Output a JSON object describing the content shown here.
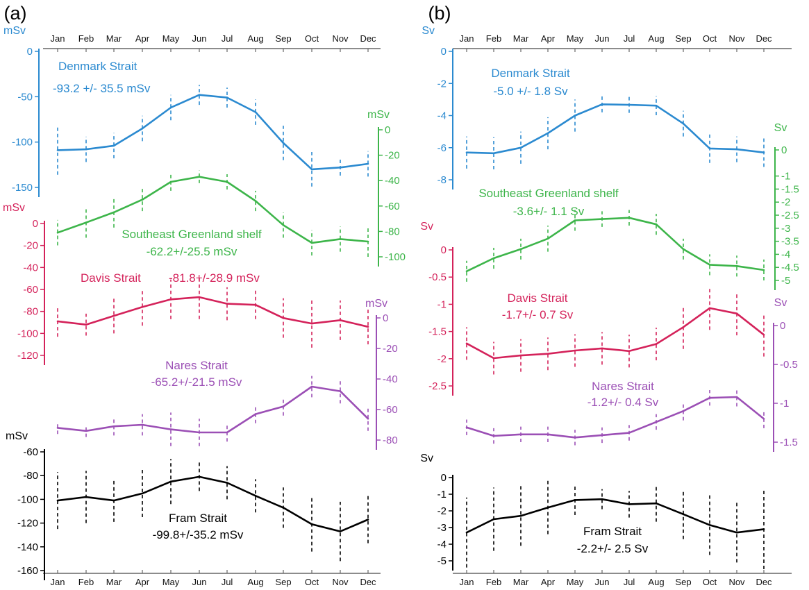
{
  "months": [
    "Jan",
    "Feb",
    "Mar",
    "Apr",
    "May",
    "Jun",
    "Jul",
    "Aug",
    "Sep",
    "Oct",
    "Nov",
    "Dec"
  ],
  "chart_data": [
    {
      "panel": "(a)",
      "type": "line",
      "x": [
        "Jan",
        "Feb",
        "Mar",
        "Apr",
        "May",
        "Jun",
        "Jul",
        "Aug",
        "Sep",
        "Oct",
        "Nov",
        "Dec"
      ],
      "series": [
        {
          "name": "Denmark Strait",
          "stat": "-93.2 +/- 35.5 mSv",
          "unit": "mSv",
          "color": "#2b8ad0",
          "axis_ticks": [
            "0",
            "-50",
            "-100",
            "-150"
          ],
          "ylim": [
            0,
            -150
          ],
          "values": [
            -109,
            -108,
            -104,
            -85,
            -62,
            -48,
            -51,
            -67,
            -101,
            -130,
            -128,
            -124
          ],
          "error": [
            27,
            14,
            14,
            14,
            14,
            11,
            11,
            14,
            19,
            19,
            9,
            14
          ]
        },
        {
          "name": "Southeast Greenland shelf",
          "stat": "-62.2+/-25.5 mSv",
          "unit": "mSv",
          "color": "#3db54a",
          "axis_ticks": [
            "0",
            "-20",
            "-40",
            "-60",
            "-80",
            "-100"
          ],
          "ylim": [
            0,
            -100
          ],
          "values": [
            -81,
            -73,
            -65,
            -55,
            -41,
            -37,
            -41,
            -56,
            -75,
            -89,
            -86,
            -88
          ],
          "error": [
            10,
            12,
            12,
            9,
            7,
            5,
            6,
            8,
            10,
            10,
            10,
            12
          ]
        },
        {
          "name": "Davis Strait",
          "stat": "-81.8+/-28.9 mSv",
          "unit": "mSv",
          "color": "#d4225a",
          "axis_ticks": [
            "0",
            "-20",
            "-40",
            "-60",
            "-80",
            "-100",
            "-120"
          ],
          "ylim": [
            0,
            -120
          ],
          "values": [
            -89,
            -92,
            -84,
            -76,
            -69,
            -67,
            -73,
            -74,
            -86,
            -91,
            -88,
            -94
          ],
          "error": [
            14,
            10,
            16,
            17,
            18,
            20,
            15,
            13,
            18,
            22,
            18,
            16
          ]
        },
        {
          "name": "Nares Strait",
          "stat": "-65.2+/-21.5 mSv",
          "unit": "mSv",
          "color": "#9b4fb5",
          "axis_ticks": [
            "0",
            "-20",
            "-40",
            "-60",
            "-80"
          ],
          "ylim": [
            0,
            -80
          ],
          "values": [
            -72,
            -74,
            -71,
            -70,
            -73,
            -75,
            -75,
            -63,
            -58,
            -45,
            -48,
            -66
          ],
          "error": [
            4,
            4,
            6,
            7,
            11,
            9,
            6,
            6,
            6,
            7,
            8,
            8
          ]
        },
        {
          "name": "Fram Strait",
          "stat": "-99.8+/-35.2 mSv",
          "unit": "mSv",
          "color": "#000000",
          "axis_ticks": [
            "-60",
            "-80",
            "-100",
            "-120",
            "-140",
            "-160"
          ],
          "ylim": [
            -60,
            -160
          ],
          "values": [
            -101,
            -98,
            -101,
            -95,
            -85,
            -81,
            -86,
            -97,
            -107,
            -121,
            -127,
            -117
          ],
          "error": [
            24,
            22,
            18,
            20,
            19,
            12,
            14,
            14,
            17,
            23,
            25,
            20
          ]
        }
      ]
    },
    {
      "panel": "(b)",
      "type": "line",
      "x": [
        "Jan",
        "Feb",
        "Mar",
        "Apr",
        "May",
        "Jun",
        "Jul",
        "Aug",
        "Sep",
        "Oct",
        "Nov",
        "Dec"
      ],
      "series": [
        {
          "name": "Denmark Strait",
          "stat": "-5.0 +/- 1.8 Sv",
          "unit": "Sv",
          "color": "#2b8ad0",
          "axis_ticks": [
            "0",
            "-2",
            "-4",
            "-6",
            "-8"
          ],
          "ylim": [
            0,
            -8
          ],
          "values": [
            -6.3,
            -6.35,
            -6.0,
            -5.1,
            -4.0,
            -3.3,
            -3.33,
            -3.38,
            -4.5,
            -6.05,
            -6.1,
            -6.3
          ],
          "error": [
            1.0,
            1.0,
            1.0,
            1.0,
            1.0,
            0.5,
            0.5,
            0.6,
            0.8,
            0.9,
            0.8,
            0.9
          ]
        },
        {
          "name": "Southeast Greenland shelf",
          "stat": "-3.6+/- 1.1 Sv",
          "unit": "Sv",
          "color": "#3db54a",
          "axis_ticks": [
            "0",
            "-1",
            "-1.5",
            "-2",
            "-2.5",
            "-3",
            "-3.5",
            "-4",
            "-4.5",
            "-5"
          ],
          "ylim": [
            0,
            -5
          ],
          "values": [
            -4.65,
            -4.15,
            -3.8,
            -3.4,
            -2.7,
            -2.65,
            -2.6,
            -2.85,
            -3.8,
            -4.4,
            -4.45,
            -4.6
          ],
          "error": [
            0.4,
            0.4,
            0.4,
            0.5,
            0.4,
            0.3,
            0.3,
            0.4,
            0.4,
            0.4,
            0.4,
            0.4
          ]
        },
        {
          "name": "Davis Strait",
          "stat": "-1.7+/- 0.7 Sv",
          "unit": "Sv",
          "color": "#d4225a",
          "axis_ticks": [
            "0",
            "-0.5",
            "-1",
            "-1.5",
            "-2",
            "-2.5"
          ],
          "ylim": [
            0,
            -2.5
          ],
          "values": [
            -1.72,
            -1.99,
            -1.94,
            -1.91,
            -1.85,
            -1.81,
            -1.86,
            -1.73,
            -1.42,
            -1.07,
            -1.17,
            -1.56
          ],
          "error": [
            0.3,
            0.3,
            0.3,
            0.3,
            0.3,
            0.3,
            0.3,
            0.3,
            0.4,
            0.4,
            0.4,
            0.4
          ]
        },
        {
          "name": "Nares Strait",
          "stat": "-1.2+/- 0.4 Sv",
          "unit": "Sv",
          "color": "#9b4fb5",
          "axis_ticks": [
            "0",
            "-0.5",
            "-1",
            "-1.5"
          ],
          "ylim": [
            0,
            -1.5
          ],
          "values": [
            -1.31,
            -1.42,
            -1.4,
            -1.4,
            -1.44,
            -1.41,
            -1.38,
            -1.24,
            -1.1,
            -0.93,
            -0.92,
            -1.2
          ],
          "error": [
            0.1,
            0.1,
            0.1,
            0.1,
            0.1,
            0.1,
            0.1,
            0.1,
            0.12,
            0.1,
            0.12,
            0.12
          ]
        },
        {
          "name": "Fram Strait",
          "stat": "-2.2+/- 2.5 Sv",
          "unit": "Sv",
          "color": "#000000",
          "axis_ticks": [
            "0",
            "-1",
            "-2",
            "-3",
            "-4",
            "-5"
          ],
          "ylim": [
            0,
            -5
          ],
          "values": [
            -3.3,
            -2.5,
            -2.3,
            -1.8,
            -1.35,
            -1.3,
            -1.6,
            -1.55,
            -2.2,
            -2.85,
            -3.3,
            -3.1
          ],
          "error": [
            2.1,
            1.9,
            1.8,
            1.6,
            0.9,
            0.6,
            0.8,
            1.1,
            1.5,
            1.8,
            1.8,
            2.4
          ]
        }
      ]
    }
  ]
}
